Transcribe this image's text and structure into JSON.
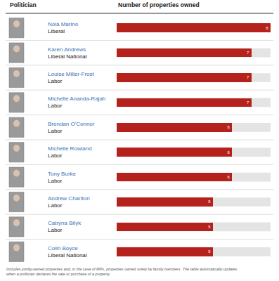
{
  "chart_data": {
    "type": "bar",
    "orientation": "horizontal",
    "ylabel": "Politician",
    "xlabel": "Number of properties owned",
    "categories": [
      "Nola Marino",
      "Karen Andrews",
      "Louise Miller-Frost",
      "Michelle Ananda-Rajah",
      "Brendan O'Connor",
      "Michelle Rowland",
      "Tony Burke",
      "Andrew Charlton",
      "Catryna Bilyk",
      "Colin Boyce"
    ],
    "parties": [
      "Liberal",
      "Liberal National",
      "Labor",
      "Labor",
      "Labor",
      "Labor",
      "Labor",
      "Labor",
      "Labor",
      "Liberal National"
    ],
    "values": [
      8,
      7,
      7,
      7,
      6,
      6,
      6,
      5,
      5,
      5
    ],
    "color": "#b5221c",
    "xlim": [
      0,
      8
    ],
    "xticks": [],
    "grid": false,
    "data_labels": true,
    "annotations": [
      "Includes jointly-owned properties and, in the case of MPs, properties owned solely by family members. The table automatically updates",
      "when a politician declares the sale or purchase of a property."
    ]
  }
}
